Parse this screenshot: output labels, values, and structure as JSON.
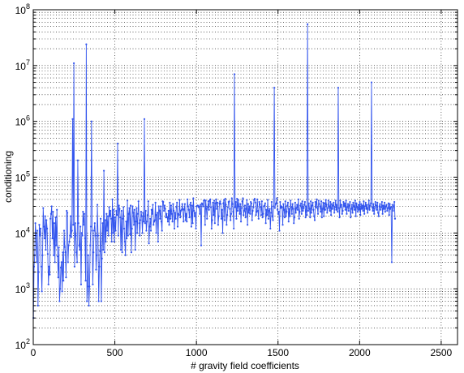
{
  "chart_data": {
    "type": "line",
    "title": "",
    "xlabel": "# gravity field coefficients",
    "ylabel": "conditioning",
    "xlim": [
      0,
      2600
    ],
    "ylim": [
      100,
      100000000
    ],
    "yscale": "log",
    "grid": true,
    "grid_style": "dotted",
    "legend": "none",
    "x_ticks": [
      0,
      500,
      1000,
      1500,
      2000,
      2500
    ],
    "y_tick_exponents": [
      2,
      3,
      4,
      5,
      6,
      7,
      8
    ],
    "y_tick_base": "10",
    "series": [
      {
        "color": "#3355ee",
        "marker": "dot",
        "x_start": 1,
        "x_step": 4,
        "values": [
          300,
          2500,
          4000,
          15000,
          9000,
          3000,
          11000,
          500,
          2000,
          14000,
          9000,
          12000,
          2500,
          900,
          4000,
          28000,
          13000,
          8000,
          20000,
          5000,
          17000,
          12000,
          4200,
          1200,
          2500,
          1800,
          18000,
          22000,
          30000,
          8000,
          24000,
          4000,
          15000,
          3000,
          19000,
          6000,
          26000,
          3800,
          1600,
          5500,
          600,
          1000,
          2400,
          3000,
          900,
          4500,
          1400,
          11000,
          5600,
          4500,
          1600,
          25000,
          23000,
          3000,
          6000,
          7000,
          9000,
          20000,
          8500,
          11000,
          1100000,
          14000,
          11000000,
          2500,
          15000,
          9000,
          4500,
          3000,
          200000,
          15000,
          6000,
          5000,
          13000,
          1200,
          10000,
          9000,
          24000,
          14000,
          22000,
          8000,
          1400,
          24000000,
          600,
          1100,
          4000,
          500,
          1100,
          6000,
          13000,
          1000000,
          11000,
          1200,
          4500,
          11000,
          15000,
          9000,
          2200,
          4000,
          32000,
          9000,
          600,
          2500,
          4700,
          18000,
          600,
          3500,
          15000,
          5000,
          130000,
          4500,
          17000,
          7000,
          22000,
          11000,
          20000,
          9000,
          29000,
          20000,
          25000,
          18000,
          7000,
          40000,
          10000,
          26000,
          7000,
          19000,
          11000,
          25000,
          21000,
          400000,
          9000,
          31000,
          27000,
          19000,
          5000,
          25000,
          4500,
          18000,
          29000,
          12000,
          7000,
          4000,
          16000,
          8000,
          38000,
          9000,
          22000,
          28000,
          9500,
          31000,
          4500,
          12000,
          30000,
          23000,
          14000,
          26000,
          5000,
          16000,
          28000,
          10000,
          22000,
          37000,
          15000,
          9000,
          17000,
          24000,
          20000,
          10000,
          23000,
          16000,
          1100000,
          15000,
          25000,
          11000,
          16000,
          21000,
          37000,
          6500,
          13000,
          18000,
          11000,
          26000,
          22000,
          32000,
          14000,
          16000,
          17000,
          35000,
          10000,
          21000,
          23000,
          7000,
          30000,
          25000,
          18000,
          30000,
          16000,
          11000,
          37000,
          36000,
          25000,
          31000,
          27000,
          19000,
          22000,
          19000,
          16000,
          25000,
          14000,
          35000,
          18000,
          31000,
          22000,
          16000,
          33000,
          25000,
          12000,
          23000,
          18000,
          29000,
          35000,
          13000,
          22000,
          21000,
          39000,
          19000,
          25000,
          26000,
          33000,
          27000,
          16000,
          26000,
          33000,
          17000,
          22000,
          16000,
          40000,
          30000,
          26000,
          19000,
          32000,
          35000,
          13000,
          31000,
          15000,
          42000,
          25000,
          20000,
          23000,
          12000,
          30000,
          31000,
          31000,
          29000,
          30000,
          22000,
          32000,
          6000,
          34000,
          33000,
          30000,
          38000,
          39000,
          14000,
          38000,
          27000,
          18000,
          29000,
          37000,
          26000,
          38000,
          40000,
          29000,
          12000,
          17000,
          35000,
          21000,
          38000,
          15000,
          34000,
          40000,
          27000,
          35000,
          14000,
          20000,
          34000,
          37000,
          33000,
          18000,
          26000,
          10000,
          34000,
          39000,
          17000,
          41000,
          32000,
          14000,
          21000,
          29000,
          36000,
          37000,
          27000,
          17000,
          22000,
          42000,
          33000,
          24000,
          12000,
          7000000,
          29000,
          36000,
          18000,
          41000,
          25000,
          39000,
          30000,
          22000,
          33000,
          16000,
          28000,
          37000,
          42000,
          21000,
          25000,
          31000,
          19000,
          27000,
          39000,
          14000,
          33000,
          23000,
          30000,
          22000,
          36000,
          34000,
          17000,
          25000,
          29000,
          39000,
          41000,
          35000,
          21000,
          24000,
          40000,
          25000,
          18000,
          36000,
          33000,
          29000,
          21000,
          37000,
          19000,
          22000,
          30000,
          31000,
          34000,
          15000,
          26000,
          21000,
          39000,
          18000,
          25000,
          27000,
          12000,
          23000,
          36000,
          20000,
          17000,
          30000,
          4000000,
          28000,
          33000,
          34000,
          42000,
          26000,
          22000,
          24000,
          11000,
          36000,
          28000,
          30000,
          29000,
          14000,
          33000,
          26000,
          19000,
          37000,
          20000,
          24000,
          31000,
          35000,
          16000,
          27000,
          20000,
          38000,
          29000,
          22000,
          33000,
          27000,
          15000,
          19000,
          35000,
          23000,
          28000,
          32000,
          26000,
          40000,
          18000,
          24000,
          31000,
          34000,
          22000,
          37000,
          25000,
          28000,
          32000,
          36000,
          19000,
          30000,
          21000,
          55000000,
          25000,
          34000,
          27000,
          19000,
          37000,
          23000,
          31000,
          35000,
          26000,
          20000,
          17000,
          36000,
          29000,
          40000,
          28000,
          22000,
          38000,
          33000,
          30000,
          24000,
          37000,
          19000,
          27000,
          35000,
          20000,
          34000,
          26000,
          39000,
          32000,
          23000,
          28000,
          38000,
          30000,
          25000,
          36000,
          21000,
          33000,
          27000,
          31000,
          35000,
          23000,
          29000,
          38000,
          26000,
          32000,
          24000,
          4000000,
          28000,
          19000,
          38000,
          29000,
          32000,
          22000,
          25000,
          36000,
          30000,
          34000,
          26000,
          38000,
          22000,
          29000,
          33000,
          25000,
          31000,
          36000,
          19000,
          27000,
          32000,
          23000,
          35000,
          30000,
          26000,
          38000,
          20000,
          34000,
          29000,
          24000,
          32000,
          26000,
          36000,
          21000,
          33000,
          27000,
          31000,
          25000,
          37000,
          22000,
          30000,
          35000,
          27000,
          32000,
          23000,
          28000,
          38000,
          26000,
          31000,
          34000,
          5000000,
          29000,
          25000,
          33000,
          22000,
          28000,
          36000,
          31000,
          26000,
          35000,
          23000,
          20000,
          30000,
          33000,
          26000,
          29000,
          36000,
          22000,
          31000,
          27000,
          35000,
          24000,
          30000,
          32000,
          25000,
          28000,
          34000,
          21000,
          33000,
          27000,
          29000,
          3000,
          32000,
          25000,
          30000,
          36000,
          18000
        ]
      }
    ]
  }
}
